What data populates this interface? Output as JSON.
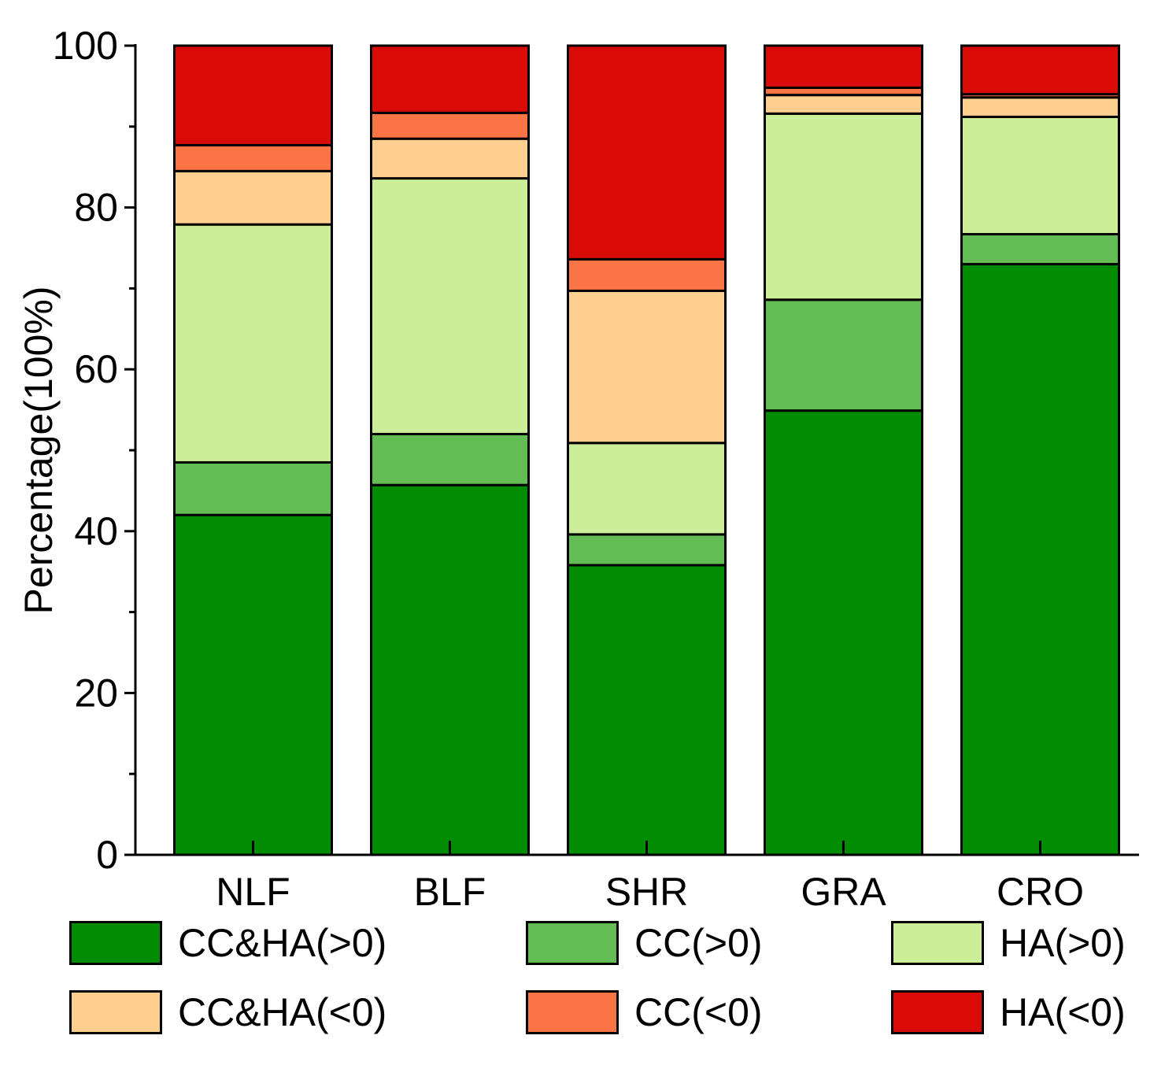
{
  "chart_data": {
    "type": "bar",
    "stacked": true,
    "title": "",
    "xlabel": "",
    "ylabel": "Percentage(100%)",
    "ylim": [
      0,
      100
    ],
    "yticks": [
      0,
      20,
      40,
      60,
      80,
      100
    ],
    "categories": [
      "NLF",
      "BLF",
      "SHR",
      "GRA",
      "CRO"
    ],
    "series": [
      {
        "name": "CC&HA(>0)",
        "color": "#008c00",
        "values": [
          42.0,
          45.7,
          35.8,
          54.9,
          73.0
        ]
      },
      {
        "name": "CC(>0)",
        "color": "#64bc55",
        "values": [
          6.5,
          6.3,
          3.8,
          13.7,
          3.7
        ]
      },
      {
        "name": "HA(>0)",
        "color": "#ccee99",
        "values": [
          29.4,
          31.6,
          11.3,
          23.0,
          14.5
        ]
      },
      {
        "name": "CC&HA(<0)",
        "color": "#ffcf90",
        "values": [
          6.6,
          4.9,
          18.8,
          2.3,
          2.4
        ]
      },
      {
        "name": "CC(<0)",
        "color": "#fa7446",
        "values": [
          3.2,
          3.2,
          3.9,
          0.9,
          0.4
        ]
      },
      {
        "name": "HA(<0)",
        "color": "#d90b07",
        "values": [
          12.3,
          8.3,
          26.4,
          5.2,
          6.0
        ]
      }
    ],
    "legend_position": "bottom"
  }
}
